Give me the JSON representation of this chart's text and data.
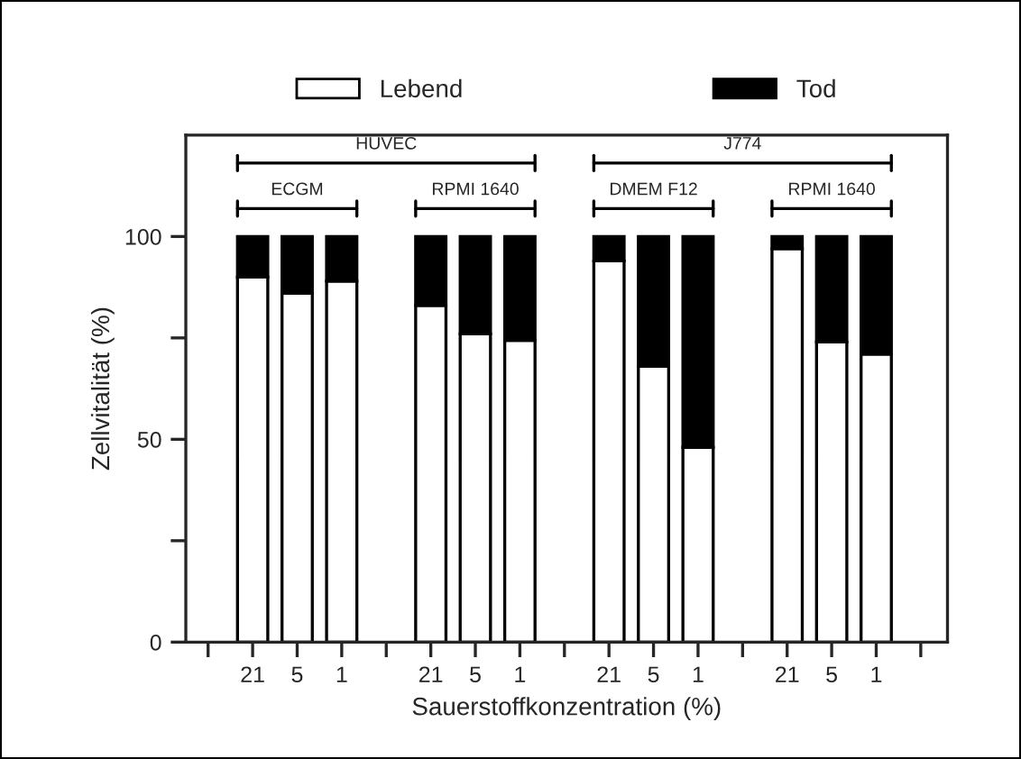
{
  "chart_data": {
    "type": "bar",
    "stacked": true,
    "xlabel": "Sauerstoffkonzentration (%)",
    "ylabel": "Zellvitalität (%)",
    "categories": [
      null,
      "21",
      "5",
      "1",
      null,
      "21",
      "5",
      "1",
      null,
      "21",
      "5",
      "1",
      null,
      "21",
      "5",
      "1",
      null
    ],
    "series": [
      {
        "name": "Lebend",
        "color": "#ffffff",
        "values": [
          null,
          90,
          86,
          89,
          null,
          83,
          76,
          74.4,
          null,
          94,
          68,
          48,
          null,
          97,
          74,
          71,
          null
        ]
      },
      {
        "name": "Tod",
        "color": "#000000",
        "values": [
          null,
          10,
          14,
          11,
          null,
          17,
          24,
          25.6,
          null,
          6,
          32,
          52,
          null,
          3,
          26,
          29,
          null
        ]
      }
    ],
    "ylim": [
      0,
      125
    ],
    "yticks": [
      0,
      {
        "value": 25,
        "label": null
      },
      50,
      {
        "value": 75,
        "label": null
      },
      100
    ],
    "annotations": [
      "HUVEC",
      "J774",
      "ECGM",
      "RPMI 1640",
      "DMEM F12",
      "RPMI 1640"
    ],
    "legend": "top",
    "grid": false
  }
}
